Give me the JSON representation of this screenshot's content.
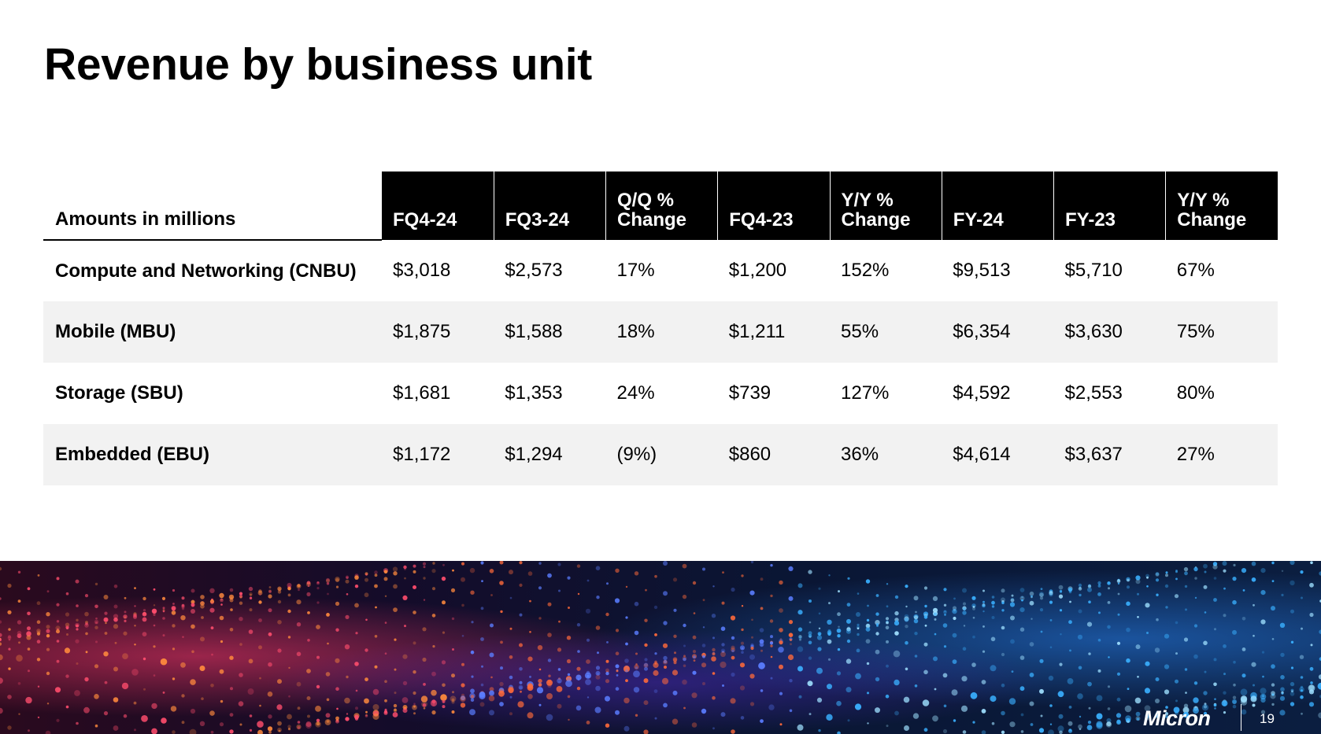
{
  "slide": {
    "title": "Revenue by business unit",
    "page_number": "19",
    "logo_text": "Micron"
  },
  "table": {
    "label_header": "Amounts in millions",
    "columns": [
      "FQ4-24",
      "FQ3-24",
      "Q/Q % Change",
      "FQ4-23",
      "Y/Y % Change",
      "FY-24",
      "FY-23",
      "Y/Y % Change"
    ],
    "rows": [
      {
        "label": "Compute and Networking (CNBU)",
        "values": [
          "$3,018",
          "$2,573",
          "17%",
          "$1,200",
          "152%",
          "$9,513",
          "$5,710",
          "67%"
        ]
      },
      {
        "label": "Mobile (MBU)",
        "values": [
          "$1,875",
          "$1,588",
          "18%",
          "$1,211",
          "55%",
          "$6,354",
          "$3,630",
          "75%"
        ]
      },
      {
        "label": "Storage (SBU)",
        "values": [
          "$1,681",
          "$1,353",
          "24%",
          "$739",
          "127%",
          "$4,592",
          "$2,553",
          "80%"
        ]
      },
      {
        "label": "Embedded (EBU)",
        "values": [
          "$1,172",
          "$1,294",
          "(9%)",
          "$860",
          "36%",
          "$4,614",
          "$3,637",
          "27%"
        ]
      }
    ]
  },
  "colors": {
    "header_bg": "#000000",
    "header_text": "#ffffff",
    "row_shade": "#f2f2f2"
  }
}
